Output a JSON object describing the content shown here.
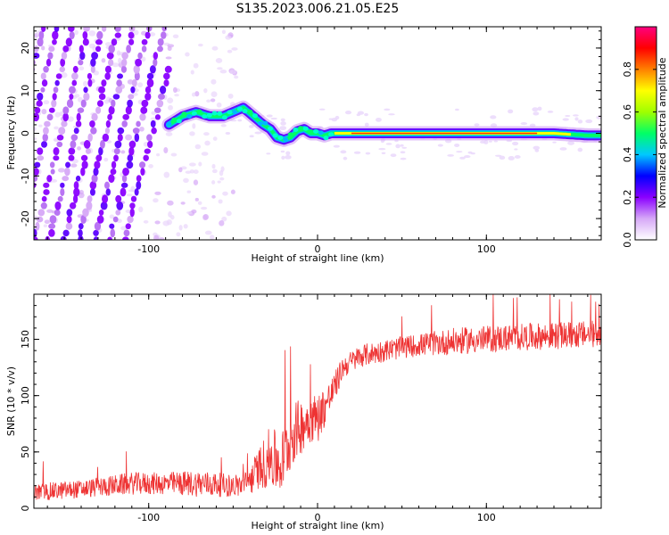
{
  "title": "S135.2023.006.21.05.E25",
  "chart_data": [
    {
      "type": "heatmap",
      "xlabel": "Height of straight line (km)",
      "ylabel": "Frequency (Hz)",
      "xlim": [
        -168,
        168
      ],
      "ylim": [
        -25,
        25
      ],
      "xticks": [
        -100,
        0,
        100
      ],
      "yticks": [
        -20,
        -10,
        0,
        10,
        20
      ],
      "colorbar": {
        "label": "Normalized spectral amplitude",
        "range": [
          0,
          1
        ],
        "ticks": [
          "0.0",
          "0.2",
          "0.4",
          "0.6",
          "0.8"
        ],
        "colors": [
          "#ffffff",
          "#d6a8f7",
          "#8a00ff",
          "#0000ff",
          "#00c8ff",
          "#00ff66",
          "#a0ff00",
          "#ffff00",
          "#ff8000",
          "#ff0000",
          "#ff0080"
        ]
      },
      "ridge": {
        "x": [
          -88,
          -80,
          -72,
          -64,
          -56,
          -50,
          -44,
          -38,
          -32,
          -28,
          -24,
          -20,
          -16,
          -12,
          -8,
          -4,
          0,
          4,
          8,
          12,
          20,
          40,
          60,
          80,
          85,
          100,
          120,
          140,
          160,
          168
        ],
        "y": [
          2,
          4,
          5,
          4,
          4,
          5,
          6,
          4,
          2,
          1,
          -1,
          -1.5,
          -1,
          0.5,
          1,
          0,
          0,
          -0.5,
          0,
          0,
          0,
          0,
          0,
          0,
          0,
          0,
          0,
          0,
          -0.5,
          -0.5
        ]
      },
      "diagonal_stripes": {
        "x_range": [
          -168,
          -88
        ],
        "slope_hz_per_km": 0.85,
        "count": 11,
        "spacing_km": 9
      }
    },
    {
      "type": "line",
      "xlabel": "Height of straight line (km)",
      "ylabel": "SNR (10 * v/v)",
      "xlim": [
        -168,
        168
      ],
      "ylim": [
        0,
        190
      ],
      "xticks": [
        -100,
        0,
        100
      ],
      "yticks": [
        0,
        50,
        100,
        150
      ],
      "series": [
        {
          "color": "#ee3333",
          "trend_x": [
            -168,
            -140,
            -110,
            -90,
            -70,
            -50,
            -42,
            -35,
            -28,
            -22,
            -15,
            -5,
            0,
            8,
            15,
            25,
            40,
            60,
            80,
            100,
            120,
            140,
            168
          ],
          "trend_y": [
            14,
            17,
            22,
            22,
            22,
            20,
            21,
            35,
            45,
            38,
            65,
            80,
            80,
            100,
            125,
            135,
            140,
            145,
            148,
            150,
            152,
            153,
            155
          ],
          "noise": [
            8,
            8,
            10,
            10,
            12,
            10,
            12,
            18,
            28,
            28,
            28,
            22,
            22,
            15,
            10,
            10,
            10,
            10,
            12,
            12,
            12,
            12,
            12
          ]
        }
      ]
    }
  ]
}
